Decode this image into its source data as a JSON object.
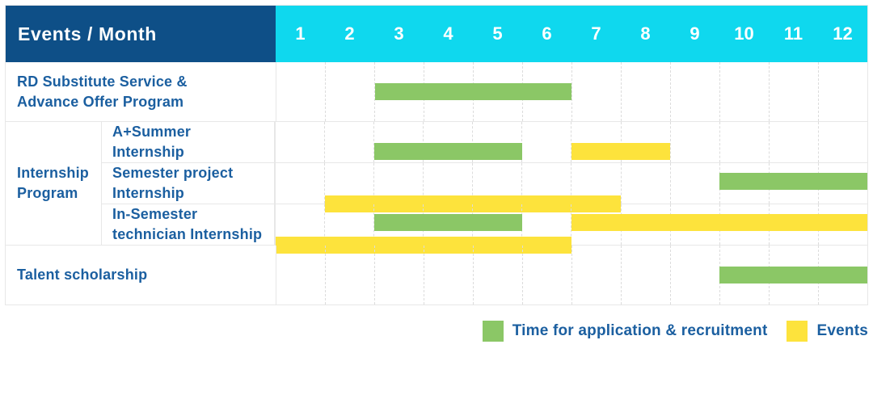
{
  "header": {
    "title": "Events / Month"
  },
  "colors": {
    "navy": "#0e4f87",
    "cyan": "#0fd8ee",
    "green": "#8bc766",
    "yellow": "#fde33c",
    "text": "#1b5fa0",
    "grid": "#e7e7e7"
  },
  "chart_data": {
    "type": "gantt",
    "title": "Events / Month",
    "x": {
      "unit": "month",
      "ticks": [
        "1",
        "2",
        "3",
        "4",
        "5",
        "6",
        "7",
        "8",
        "9",
        "10",
        "11",
        "12"
      ],
      "min": 1,
      "max": 13,
      "note": "bar start/end are month boundaries; end is exclusive (start 3, end 7 covers months 3-6)"
    },
    "bar_kinds": {
      "recruitment": {
        "label": "Time for application & recruitment",
        "color": "#8bc766"
      },
      "events": {
        "label": "Events",
        "color": "#fde33c"
      }
    },
    "sections": [
      {
        "group_lines": null,
        "rows": [
          {
            "label_lines": [
              "RD Substitute Service &",
              "Advance Offer Program"
            ],
            "bars": [
              {
                "kind": "recruitment",
                "start": 3,
                "end": 7,
                "lane": "center"
              }
            ]
          }
        ]
      },
      {
        "group_lines": [
          "Internship",
          "Program"
        ],
        "rows": [
          {
            "label_lines": [
              "A+Summer",
              "Internship"
            ],
            "bars": [
              {
                "kind": "recruitment",
                "start": 3,
                "end": 6,
                "lane": "center"
              },
              {
                "kind": "events",
                "start": 7,
                "end": 9,
                "lane": "center"
              }
            ]
          },
          {
            "label_lines": [
              "Semester project",
              "Internship"
            ],
            "bars": [
              {
                "kind": "recruitment",
                "start": 10,
                "end": 13,
                "lane": "top"
              },
              {
                "kind": "events",
                "start": 2,
                "end": 8,
                "lane": "bottom"
              }
            ]
          },
          {
            "label_lines": [
              "In-Semester",
              "technician Internship"
            ],
            "bars": [
              {
                "kind": "recruitment",
                "start": 3,
                "end": 6,
                "lane": "top"
              },
              {
                "kind": "events",
                "start": 7,
                "end": 13,
                "lane": "top"
              },
              {
                "kind": "events",
                "start": 1,
                "end": 7,
                "lane": "bottom"
              }
            ]
          }
        ]
      },
      {
        "group_lines": null,
        "rows": [
          {
            "label_lines": [
              "Talent scholarship"
            ],
            "bars": [
              {
                "kind": "recruitment",
                "start": 10,
                "end": 13,
                "lane": "center"
              }
            ]
          }
        ]
      }
    ],
    "legend": [
      {
        "kind": "recruitment",
        "label": "Time for application & recruitment"
      },
      {
        "kind": "events",
        "label": "Events"
      }
    ]
  }
}
